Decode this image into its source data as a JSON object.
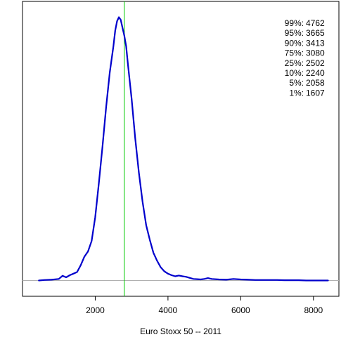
{
  "chart_data": {
    "type": "line",
    "title": "",
    "xlabel": "Euro Stoxx 50 -- 2011",
    "ylabel": "",
    "xlim": [
      0,
      8700
    ],
    "ylim": [
      -0.06,
      1.06
    ],
    "x_ticks": [
      2000,
      4000,
      6000,
      8000
    ],
    "x_tick_labels": [
      "2000",
      "4000",
      "6000",
      "8000"
    ],
    "y_axis_shown": false,
    "grid": false,
    "series": [
      {
        "color": "#0000cc",
        "x": [
          450,
          600,
          800,
          1000,
          1100,
          1200,
          1300,
          1400,
          1500,
          1600,
          1700,
          1800,
          1900,
          2000,
          2100,
          2200,
          2300,
          2400,
          2500,
          2550,
          2600,
          2650,
          2700,
          2750,
          2800,
          2850,
          2900,
          3000,
          3100,
          3200,
          3300,
          3400,
          3500,
          3600,
          3700,
          3800,
          3900,
          4000,
          4100,
          4200,
          4300,
          4400,
          4500,
          4600,
          4700,
          4800,
          4900,
          5000,
          5100,
          5200,
          5400,
          5600,
          5800,
          6000,
          6200,
          6400,
          6600,
          6800,
          7000,
          7200,
          7400,
          7600,
          7800,
          8000,
          8200,
          8400
        ],
        "y": [
          0.0,
          0.002,
          0.003,
          0.006,
          0.018,
          0.012,
          0.02,
          0.026,
          0.032,
          0.058,
          0.09,
          0.11,
          0.15,
          0.24,
          0.37,
          0.51,
          0.66,
          0.79,
          0.89,
          0.95,
          0.985,
          1.0,
          0.99,
          0.96,
          0.93,
          0.89,
          0.82,
          0.69,
          0.54,
          0.41,
          0.3,
          0.21,
          0.155,
          0.105,
          0.075,
          0.05,
          0.035,
          0.026,
          0.02,
          0.016,
          0.019,
          0.016,
          0.014,
          0.01,
          0.006,
          0.005,
          0.004,
          0.006,
          0.009,
          0.006,
          0.004,
          0.003,
          0.006,
          0.004,
          0.003,
          0.002,
          0.002,
          0.002,
          0.002,
          0.001,
          0.001,
          0.001,
          0.0,
          0.0,
          0.0,
          0.0
        ]
      }
    ],
    "vertical_line": {
      "x": 2800,
      "color": "#00cc00"
    },
    "baseline": {
      "y": 0,
      "color": "#b0b0b0"
    },
    "annotations": [
      {
        "label": "99%:",
        "value": "4762"
      },
      {
        "label": "95%:",
        "value": "3665"
      },
      {
        "label": "90%:",
        "value": "3413"
      },
      {
        "label": "75%:",
        "value": "3080"
      },
      {
        "label": "25%:",
        "value": "2502"
      },
      {
        "label": "10%:",
        "value": "2240"
      },
      {
        "label": "5%:",
        "value": "2058"
      },
      {
        "label": "1%:",
        "value": "1607"
      }
    ],
    "annotation_placement": "top-right"
  }
}
